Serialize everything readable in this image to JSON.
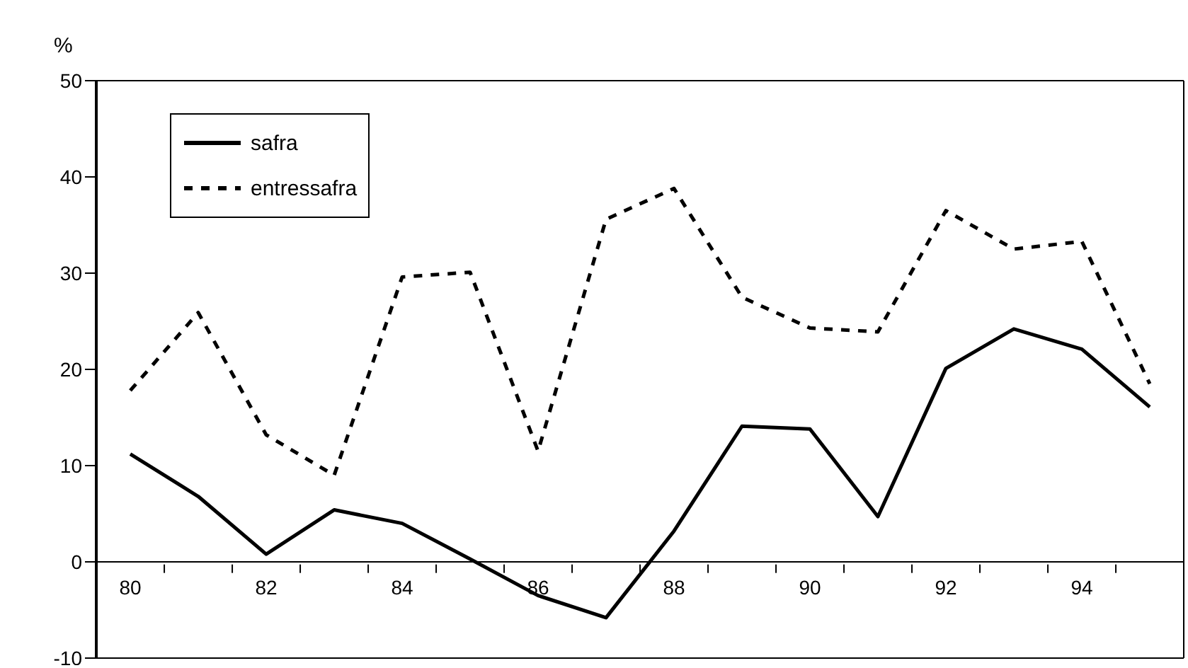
{
  "chart_data": {
    "type": "line",
    "ylabel": "%",
    "categories": [
      "80",
      null,
      "82",
      null,
      "84",
      null,
      "86",
      null,
      "88",
      null,
      "90",
      null,
      "92",
      null,
      "94",
      null
    ],
    "series": [
      {
        "name": "safra",
        "color": "#000000",
        "line_style": "solid",
        "values": [
          11.2,
          6.8,
          0.8,
          5.4,
          4.0,
          0.3,
          -3.5,
          -5.8,
          3.2,
          14.1,
          13.8,
          4.7,
          20.1,
          24.2,
          22.1,
          16.1
        ]
      },
      {
        "name": "entressafra",
        "color": "#000000",
        "line_style": "dashed",
        "values": [
          17.8,
          25.9,
          13.2,
          9.0,
          29.6,
          30.1,
          11.5,
          35.6,
          38.8,
          27.5,
          24.3,
          23.9,
          36.5,
          32.5,
          33.3,
          18.5
        ]
      }
    ],
    "ylim": [
      -10,
      50
    ],
    "yticks": [
      -10,
      0,
      10,
      20,
      30,
      40,
      50
    ],
    "grid": false,
    "legend": "top left",
    "marker": "none"
  }
}
